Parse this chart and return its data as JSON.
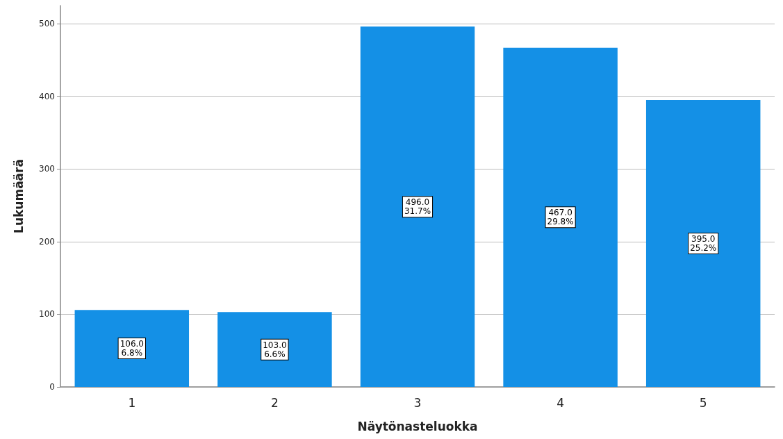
{
  "chart_data": {
    "type": "bar",
    "xlabel": "Näytönasteluokka",
    "ylabel": "Lukumäärä",
    "categories": [
      "1",
      "2",
      "3",
      "4",
      "5"
    ],
    "values": [
      106,
      103,
      496,
      467,
      395
    ],
    "value_labels": [
      "106.0\n6.8%",
      "103.0\n6.6%",
      "496.0\n31.7%",
      "467.0\n29.8%",
      "395.0\n25.2%"
    ],
    "color": "#1490e6",
    "ylim": [
      0,
      525
    ],
    "yticks": [
      0,
      100,
      200,
      300,
      400,
      500
    ],
    "grid": "y"
  }
}
